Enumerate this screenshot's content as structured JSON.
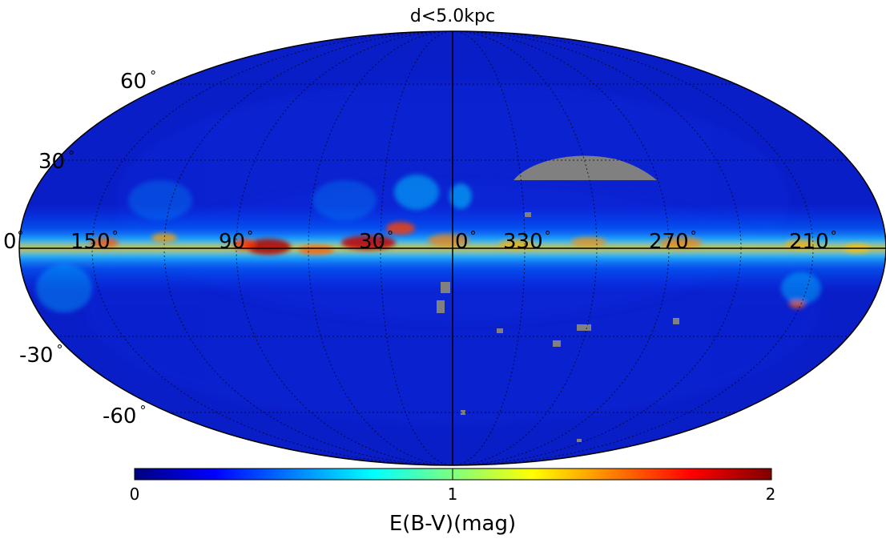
{
  "title": "d<5.0kpc",
  "projection": "mollweide",
  "colormap": "jet",
  "missing_data_color": "#808080",
  "latitude_labels": [
    "60",
    "30",
    "0",
    "-30",
    "-60"
  ],
  "degree_symbol": "°",
  "longitude_labels": [
    "150",
    "90",
    "30",
    "0",
    "330",
    "270",
    "210"
  ],
  "colorbar": {
    "min_label": "0",
    "mid_label": "1",
    "max_label": "2",
    "label": "E(B-V)(mag)",
    "range": [
      0,
      2
    ]
  }
}
